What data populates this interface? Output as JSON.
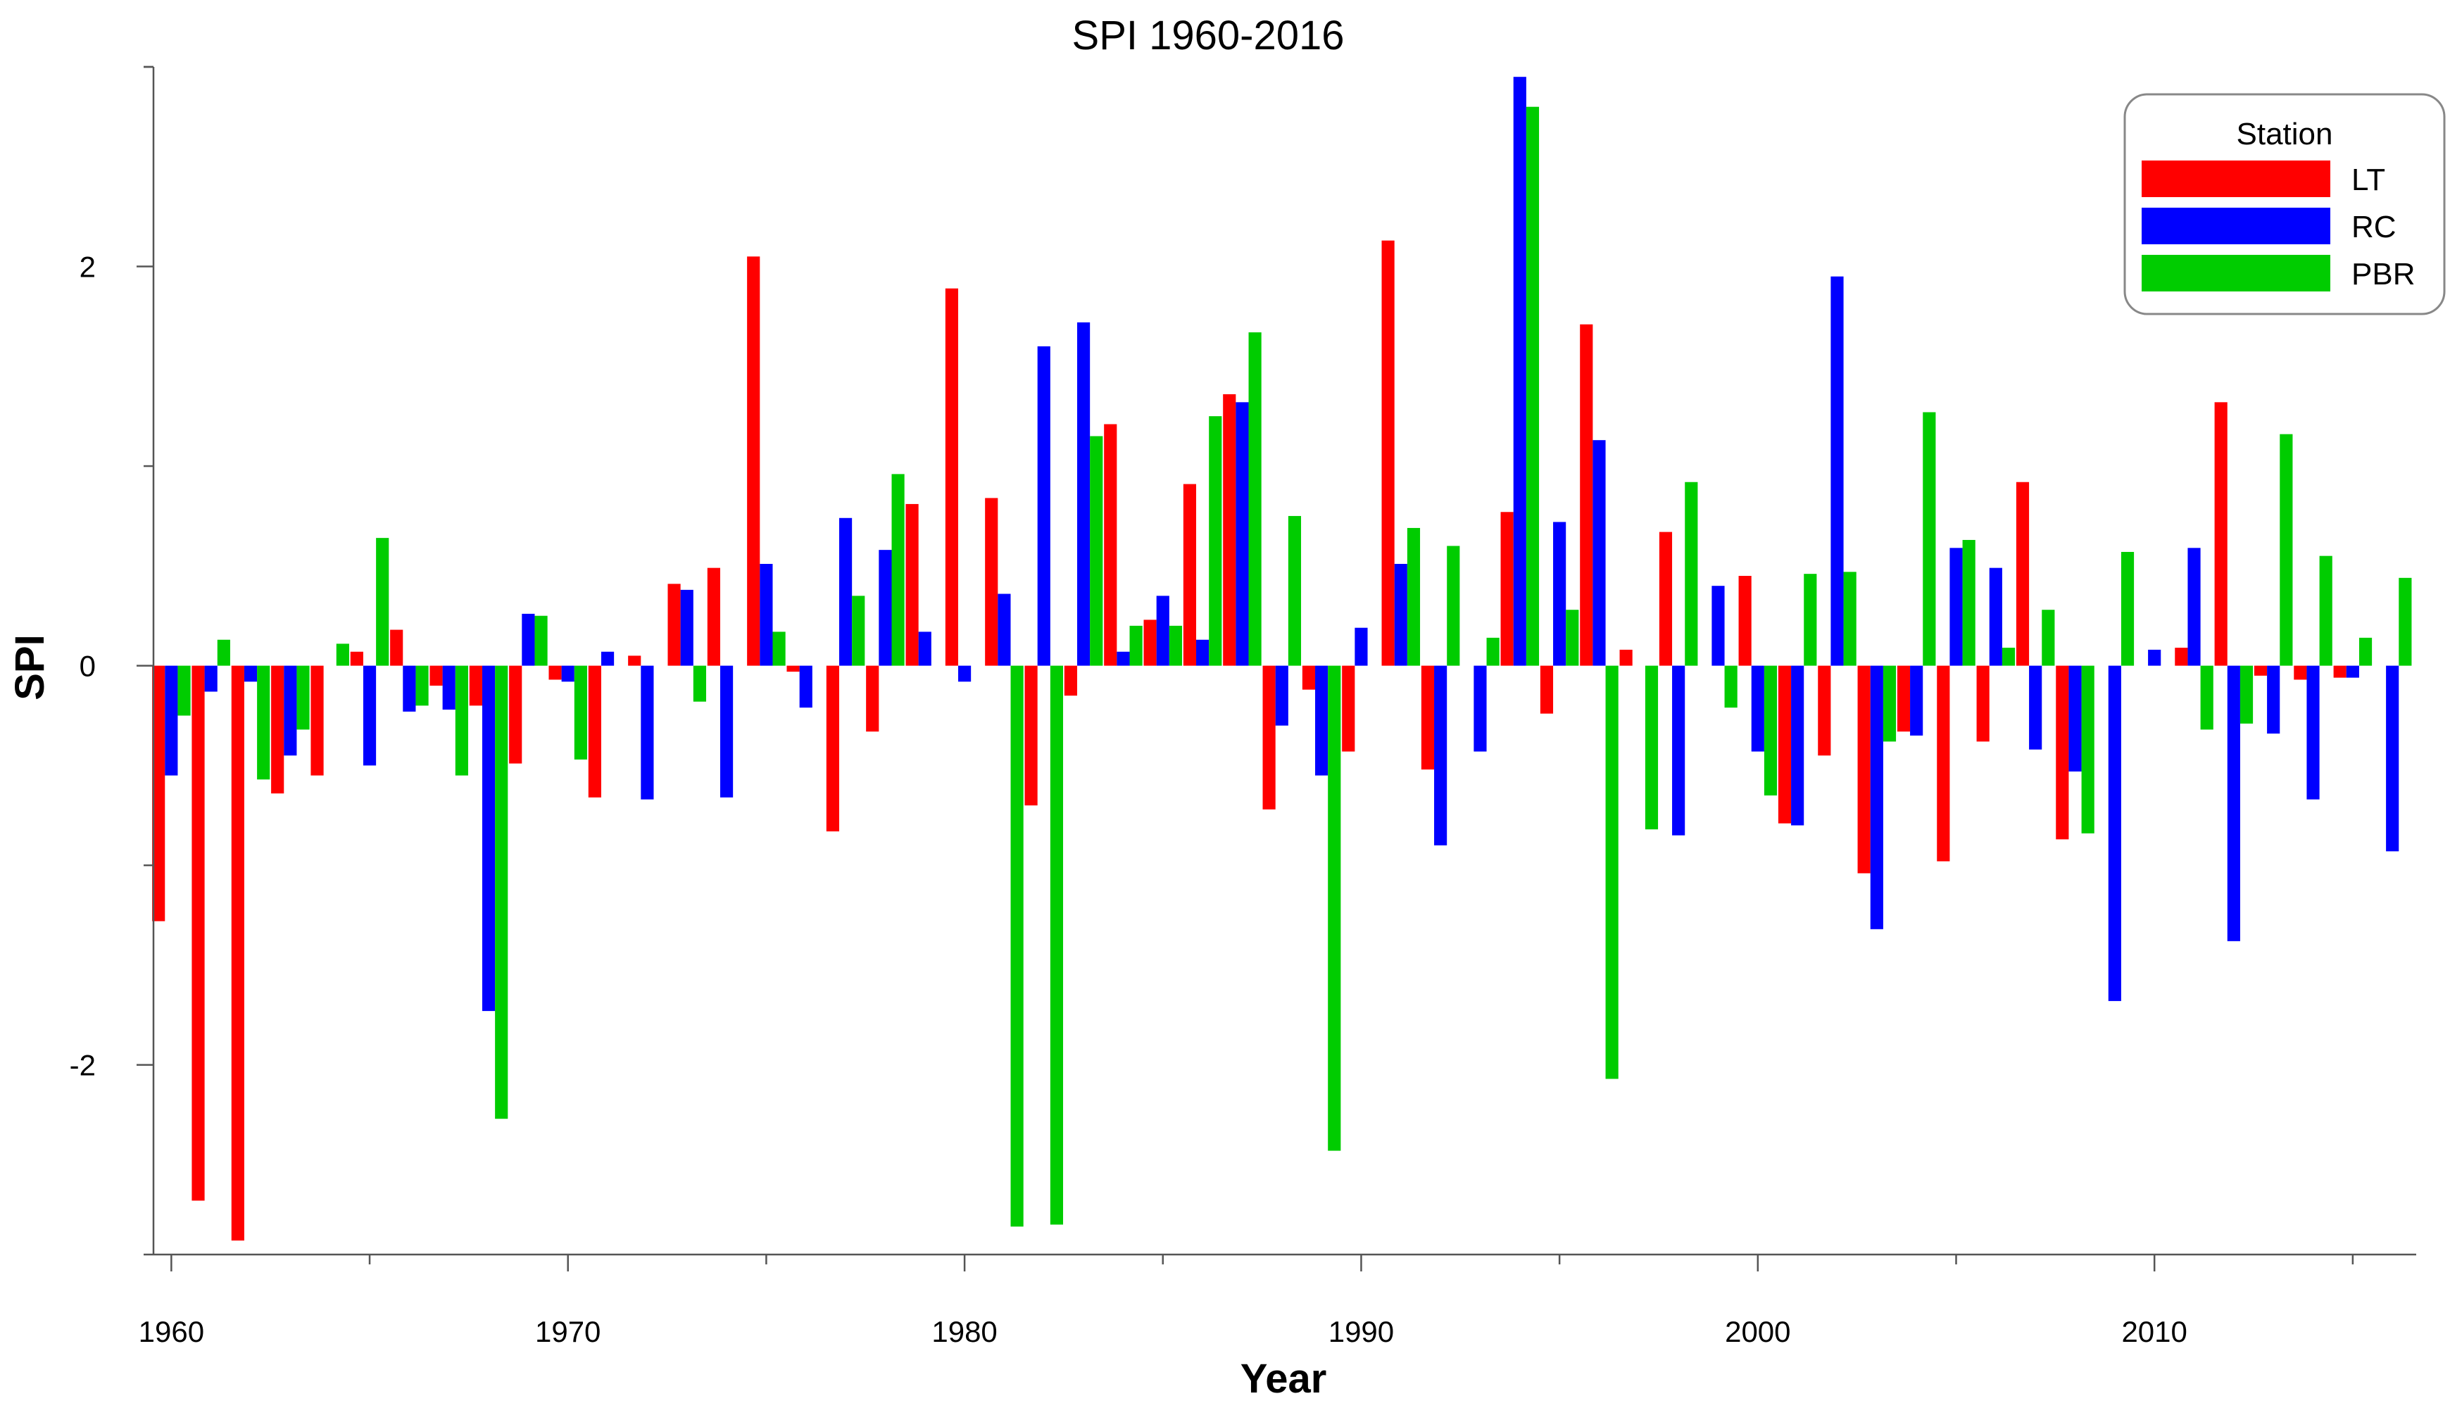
{
  "chart_data": {
    "type": "bar",
    "title": "SPI 1960-2016",
    "xlabel": "Year",
    "ylabel": "SPI",
    "x": [
      1960,
      1961,
      1962,
      1963,
      1964,
      1965,
      1966,
      1967,
      1968,
      1969,
      1970,
      1971,
      1972,
      1973,
      1974,
      1975,
      1976,
      1977,
      1978,
      1979,
      1980,
      1981,
      1982,
      1983,
      1984,
      1985,
      1986,
      1987,
      1988,
      1989,
      1990,
      1991,
      1992,
      1993,
      1994,
      1995,
      1996,
      1997,
      1998,
      1999,
      2000,
      2001,
      2002,
      2003,
      2004,
      2005,
      2006,
      2007,
      2008,
      2009,
      2010,
      2011,
      2012,
      2013,
      2014,
      2015,
      2016
    ],
    "xlim": [
      1959.55,
      2016.6
    ],
    "ylim": [
      -2.95,
      3.0
    ],
    "x_ticks": [
      1960,
      1970,
      1980,
      1990,
      2000,
      2010
    ],
    "x_minor_step": 5,
    "y_ticks": [
      -2,
      0,
      2
    ],
    "y_minor_step": 1,
    "grid": false,
    "legend": {
      "title": "Station",
      "position": "top-right"
    },
    "series": [
      {
        "name": "LT",
        "color": "#ff0000",
        "values": [
          -1.28,
          -2.68,
          -2.88,
          -0.64,
          -0.55,
          0.07,
          0.18,
          -0.1,
          -0.2,
          -0.49,
          -0.07,
          -0.66,
          0.05,
          0.41,
          0.49,
          2.05,
          -0.03,
          -0.83,
          -0.33,
          0.81,
          1.89,
          0.84,
          -0.7,
          -0.15,
          1.21,
          0.23,
          0.91,
          1.36,
          -0.72,
          -0.12,
          -0.43,
          2.13,
          -0.52,
          0.0,
          0.77,
          -0.24,
          1.71,
          0.08,
          0.67,
          0.0,
          0.45,
          -0.79,
          -0.45,
          -1.04,
          -0.33,
          -0.98,
          -0.38,
          0.92,
          -0.87,
          0.0,
          0.0,
          0.09,
          1.32,
          -0.05,
          -0.07,
          -0.06,
          0.0
        ]
      },
      {
        "name": "RC",
        "color": "#0000ff",
        "values": [
          -0.55,
          -0.13,
          -0.08,
          -0.45,
          0.0,
          -0.5,
          -0.23,
          -0.22,
          -1.73,
          0.26,
          -0.08,
          0.07,
          -0.67,
          0.38,
          -0.66,
          0.51,
          -0.21,
          0.74,
          0.58,
          0.17,
          -0.08,
          0.36,
          1.6,
          1.72,
          0.07,
          0.35,
          0.13,
          1.32,
          -0.3,
          -0.55,
          0.19,
          0.51,
          -0.9,
          -0.43,
          2.95,
          0.72,
          1.13,
          0.0,
          -0.85,
          0.4,
          -0.43,
          -0.8,
          1.95,
          -1.32,
          -0.35,
          0.59,
          0.49,
          -0.42,
          -0.53,
          -1.68,
          0.08,
          0.59,
          -1.38,
          -0.34,
          -0.67,
          -0.06,
          -0.93
        ]
      },
      {
        "name": "PBR",
        "color": "#00cc00",
        "values": [
          -0.25,
          0.13,
          -0.57,
          -0.32,
          0.11,
          0.64,
          -0.2,
          -0.55,
          -2.27,
          0.25,
          -0.47,
          0.0,
          0.0,
          -0.18,
          0.0,
          0.17,
          0.0,
          0.35,
          0.96,
          0.0,
          0.0,
          -2.81,
          -2.8,
          1.15,
          0.2,
          0.2,
          1.25,
          1.67,
          0.75,
          -2.43,
          0.0,
          0.69,
          0.6,
          0.14,
          2.8,
          0.28,
          -2.07,
          -0.82,
          0.92,
          -0.21,
          -0.65,
          0.46,
          0.47,
          -0.38,
          1.27,
          0.63,
          0.09,
          0.28,
          -0.84,
          0.57,
          0.0,
          -0.32,
          -0.29,
          1.16,
          0.55,
          0.14,
          0.44
        ]
      }
    ]
  }
}
